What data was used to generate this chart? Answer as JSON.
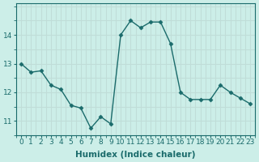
{
  "x": [
    0,
    1,
    2,
    3,
    4,
    5,
    6,
    7,
    8,
    9,
    10,
    11,
    12,
    13,
    14,
    15,
    16,
    17,
    18,
    19,
    20,
    21,
    22,
    23
  ],
  "y": [
    13.0,
    12.7,
    12.75,
    12.25,
    12.1,
    11.55,
    11.45,
    10.75,
    11.15,
    10.9,
    14.0,
    14.5,
    14.25,
    14.45,
    14.45,
    13.7,
    12.0,
    11.75,
    11.75,
    11.75,
    12.25,
    12.0,
    11.8,
    11.6
  ],
  "line_color": "#1a6b6b",
  "marker": "D",
  "marker_size": 2.5,
  "bg_color": "#cceee8",
  "grid_color": "#c0ddd8",
  "xlabel": "Humidex (Indice chaleur)",
  "ylim": [
    10.5,
    15.1
  ],
  "yticks": [
    11,
    12,
    13,
    14
  ],
  "xticks": [
    0,
    1,
    2,
    3,
    4,
    5,
    6,
    7,
    8,
    9,
    10,
    11,
    12,
    13,
    14,
    15,
    16,
    17,
    18,
    19,
    20,
    21,
    22,
    23
  ],
  "tick_label_fontsize": 6.5,
  "xlabel_fontsize": 7.5
}
